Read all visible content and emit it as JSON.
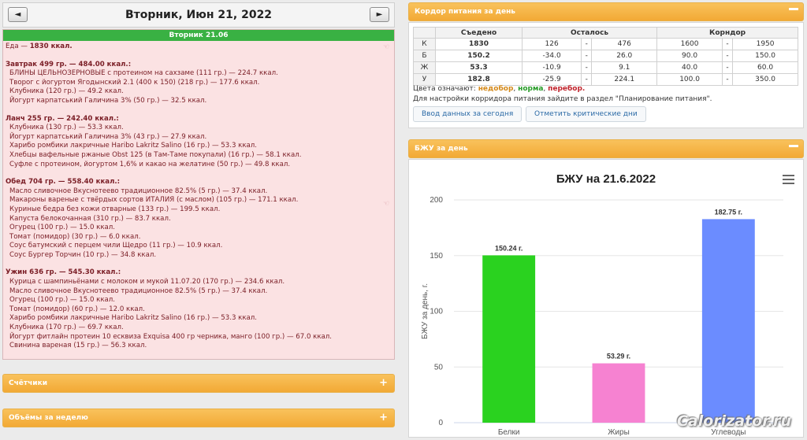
{
  "date_nav": {
    "prev": "◄",
    "next": "►",
    "title": "Вторник, Июн 21, 2022"
  },
  "day": {
    "header": "Вторник 21.06",
    "total_label": "Еда — ",
    "total_value": "1830 ккал.",
    "meals": [
      {
        "title": "Завтрак 499 гр. — 484.00 ккал.:",
        "items": [
          "БЛИНЫ ЦЕЛЬНОЗЕРНОВЫЕ с протеином на сахзаме (111 гр.) — 224.7 ккал.",
          "Творог с йогуртом Ягодынский 2.1 (400 к 150) (218 гр.) — 177.6 ккал.",
          "Клубника (120 гр.) — 49.2 ккал.",
          "Йогурт карпатський Галичина 3% (50 гр.) — 32.5 ккал."
        ]
      },
      {
        "title": "Ланч 255 гр. — 242.40 ккал.:",
        "items": [
          "Клубника (130 гр.) — 53.3 ккал.",
          "Йогурт карпатський Галичина 3% (43 гр.) — 27.9 ккал.",
          "Харибо ромбики лакричные Haribo Lakritz Salino (16 гр.) — 53.3 ккал.",
          "Хлебцы вафельные ржаные Obst 125 (в Там-Таме покупали) (16 гр.) — 58.1 ккал.",
          "Суфле с протеином, йогуртом 1,6% и какао на желатине (50 гр.) — 49.8 ккал."
        ]
      },
      {
        "title": "Обед 704 гр. — 558.40 ккал.:",
        "items": [
          "Масло сливочное Вкуснотеево традиционное 82.5% (5 гр.) — 37.4 ккал.",
          "Макароны вареные с твёрдых сортов ИТАЛИЯ (с маслом) (105 гр.) — 171.1 ккал.",
          "Куриные бедра без кожи отварные (133 гр.) — 199.5 ккал.",
          "Капуста белокочанная (310 гр.) — 83.7 ккал.",
          "Огурец (100 гр.) — 15.0 ккал.",
          "Томат (помидор) (30 гр.) — 6.0 ккал.",
          "Соус батумский с перцем чили Щедро (11 гр.) — 10.9 ккал.",
          "Соус Бургер Торчин (10 гр.) — 34.8 ккал."
        ]
      },
      {
        "title": "Ужин 636 гр. — 545.30 ккал.:",
        "items": [
          "Курица с шампиньёнами с молоком и мукой 11.07.20 (170 гр.) — 234.6 ккал.",
          "Масло сливочное Вкуснотеево традиционное 82.5% (5 гр.) — 37.4 ккал.",
          "Огурец (100 гр.) — 15.0 ккал.",
          "Томат (помидор) (60 гр.) — 12.0 ккал.",
          "Харибо ромбики лакричные Haribo Lakritz Salino (16 гр.) — 53.3 ккал.",
          "Клубника (170 гр.) — 69.7 ккал.",
          "Йогурт фитлайн протеин 10 есквиза Exquisa 400 гр черника, манго (100 гр.) — 67.0 ккал.",
          "Свинина вареная (15 гр.) — 56.3 ккал."
        ]
      }
    ]
  },
  "accordions": {
    "counters": "Счётчики",
    "weekly": "Объёмы за неделю",
    "plus": "+"
  },
  "corridor": {
    "title": "Кордор питания за день",
    "headers": {
      "eaten": "Съедено",
      "left": "Осталось",
      "corridor": "Корндор"
    },
    "rows": [
      {
        "nut": "К",
        "eaten": "1830",
        "eaten_class": "g",
        "l1": "126",
        "dash1": "-",
        "l2": "476",
        "c1": "1600",
        "dash2": "-",
        "c2": "1950"
      },
      {
        "nut": "Б",
        "eaten": "150.2",
        "eaten_class": "r",
        "l1": "-34.0",
        "dash1": "-",
        "l2": "26.0",
        "c1": "90.0",
        "dash2": "-",
        "c2": "150.0"
      },
      {
        "nut": "Ж",
        "eaten": "53.3",
        "eaten_class": "g",
        "l1": "-10.9",
        "dash1": "-",
        "l2": "9.1",
        "c1": "40.0",
        "dash2": "-",
        "c2": "60.0"
      },
      {
        "nut": "У",
        "eaten": "182.8",
        "eaten_class": "g",
        "l1": "-25.9",
        "dash1": "-",
        "l2": "224.1",
        "c1": "100.0",
        "dash2": "-",
        "c2": "350.0"
      }
    ],
    "colors_label": "Цвета означают:",
    "c_under": "недобор",
    "c_norm": "норма",
    "c_over": "перебор.",
    "hint": "Для настройки корридора питания зайдите в раздел \"Планирование питания\".",
    "btn_enter": "Ввод данных за сегодня",
    "btn_critical": "Отметить критические дни",
    "sep1": ", ",
    "sep2": ", "
  },
  "bju_panel": {
    "title": "БЖУ за день"
  },
  "chart_data": {
    "type": "bar",
    "title": "БЖУ на 21.6.2022",
    "ylabel": "БЖУ за день, г.",
    "xlabel": "",
    "categories": [
      "Белки",
      "Жиры",
      "Углеводы"
    ],
    "values": [
      150.24,
      53.29,
      182.75
    ],
    "data_labels": [
      "150.24 г.",
      "53.29 г.",
      "182.75 г."
    ],
    "colors": [
      "#2ad21f",
      "#f682d1",
      "#6b8cff"
    ],
    "ylim": [
      0,
      200
    ],
    "yticks": [
      0,
      50,
      100,
      150,
      200
    ],
    "grid": true
  },
  "watermark": "Calorizator.ru"
}
